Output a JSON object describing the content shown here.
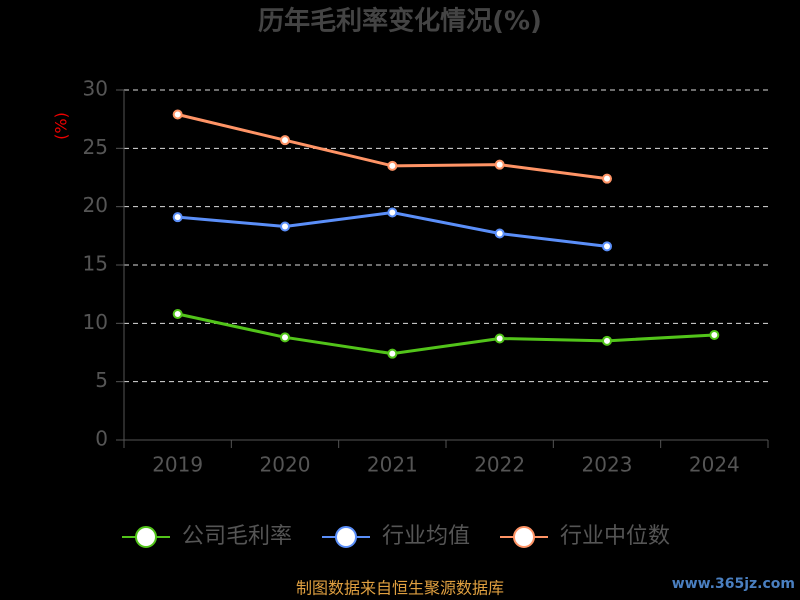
{
  "chart_data": {
    "type": "line",
    "title": "历年毛利率变化情况(%)",
    "y_label": "(%)",
    "categories": [
      "2019",
      "2020",
      "2021",
      "2022",
      "2023",
      "2024"
    ],
    "series": [
      {
        "name": "公司毛利率",
        "color": "#52c41a",
        "values": [
          10.8,
          8.8,
          7.4,
          8.7,
          8.5,
          9.0
        ]
      },
      {
        "name": "行业均值",
        "color": "#5b8ff9",
        "values": [
          19.1,
          18.3,
          19.5,
          17.7,
          16.6,
          null
        ]
      },
      {
        "name": "行业中位数",
        "color": "#ff9466",
        "values": [
          27.9,
          25.7,
          23.5,
          23.6,
          22.4,
          null
        ]
      }
    ],
    "ylim": [
      0,
      30
    ],
    "yticks": [
      0,
      5,
      10,
      15,
      20,
      25,
      30
    ],
    "grid": true,
    "source": "制图数据来自恒生聚源数据库",
    "watermark": "www.365jz.com"
  }
}
